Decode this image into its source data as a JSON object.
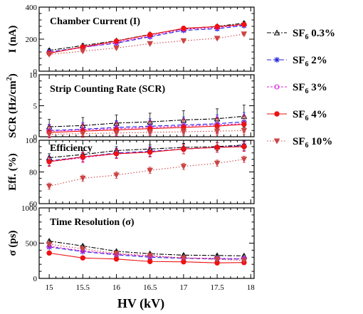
{
  "chart_data": {
    "type": "line",
    "xlabel": "HV (kV)",
    "x": [
      15,
      15.5,
      16,
      16.5,
      17,
      17.5,
      17.9
    ],
    "x_ticks": [
      "15",
      "15.5",
      "16",
      "16.5",
      "17",
      "17.5",
      "18"
    ],
    "xlim": [
      14.85,
      18.05
    ],
    "legend": {
      "placement": "right",
      "entries": [
        {
          "base": "SF",
          "sub": "6",
          "rest": " 0.3%"
        },
        {
          "base": "SF",
          "sub": "6",
          "rest": " 2%"
        },
        {
          "base": "SF",
          "sub": "6",
          "rest": " 3%"
        },
        {
          "base": "SF",
          "sub": "6",
          "rest": " 4%"
        },
        {
          "base": "SF",
          "sub": "6",
          "rest": " 10%"
        }
      ]
    },
    "series_style": [
      {
        "color": "#000000",
        "marker": "triangle",
        "dash": "6,2,2,2"
      },
      {
        "color": "#2222dd",
        "marker": "star",
        "dash": "6,3"
      },
      {
        "color": "#dd22dd",
        "marker": "circle-open",
        "dash": "3,2"
      },
      {
        "color": "#ee1111",
        "marker": "circle",
        "dash": ""
      },
      {
        "color": "#cc4444",
        "marker": "triangle-down",
        "dash": "1.5,2.5"
      }
    ],
    "panels": [
      {
        "title": "Chamber Current (I)",
        "ylabel": "I (nA)",
        "ylim": [
          0,
          400
        ],
        "yticks": [
          0,
          200,
          400
        ],
        "series": [
          {
            "values": [
              130,
              160,
              190,
              230,
              265,
              280,
              300
            ],
            "error": [
              10,
              10,
              10,
              10,
              10,
              10,
              10
            ]
          },
          {
            "values": [
              120,
              150,
              175,
              215,
              255,
              265,
              285
            ],
            "error": [
              10,
              10,
              10,
              10,
              10,
              10,
              10
            ]
          },
          {
            "values": [
              115,
              148,
              180,
              220,
              262,
              272,
              290
            ],
            "error": [
              10,
              10,
              10,
              10,
              10,
              10,
              10
            ]
          },
          {
            "values": [
              112,
              152,
              188,
              228,
              268,
              278,
              292
            ],
            "error": [
              10,
              10,
              10,
              10,
              10,
              10,
              10
            ]
          },
          {
            "values": [
              105,
              125,
              145,
              172,
              190,
              205,
              232
            ],
            "error": [
              8,
              8,
              8,
              8,
              8,
              8,
              8
            ]
          }
        ]
      },
      {
        "title": "Strip Counting Rate (SCR)",
        "ylabel_main": "SCR (Hz/cm",
        "ylabel_sup": "2",
        "ylabel_end": ")",
        "ylim": [
          0,
          10
        ],
        "yticks": [
          0,
          5,
          10
        ],
        "series": [
          {
            "values": [
              1.6,
              1.8,
              2.2,
              2.4,
              2.7,
              2.9,
              3.3
            ],
            "error": [
              1.2,
              1.3,
              1.3,
              1.4,
              1.5,
              1.6,
              1.8
            ]
          },
          {
            "values": [
              1.0,
              1.2,
              1.5,
              1.7,
              1.9,
              2.1,
              2.4
            ],
            "error": [
              1.0,
              1.1,
              1.1,
              1.2,
              1.3,
              1.4,
              1.5
            ]
          },
          {
            "values": [
              0.9,
              1.1,
              1.3,
              1.5,
              1.7,
              1.9,
              2.1
            ],
            "error": [
              1.0,
              1.0,
              1.1,
              1.1,
              1.2,
              1.3,
              1.4
            ]
          },
          {
            "values": [
              0.7,
              0.9,
              1.1,
              1.3,
              1.5,
              1.7,
              2.0
            ],
            "error": [
              0.9,
              1.0,
              1.0,
              1.1,
              1.2,
              1.2,
              1.3
            ]
          },
          {
            "values": [
              0.4,
              0.5,
              0.6,
              0.7,
              0.8,
              0.9,
              1.0
            ],
            "error": [
              0.4,
              0.4,
              0.5,
              0.5,
              0.5,
              0.6,
              0.6
            ]
          }
        ]
      },
      {
        "title": "Efficiency",
        "ylabel": "Eff. (%)",
        "ylim": [
          60,
          100
        ],
        "yticks": [
          60,
          80,
          100
        ],
        "series": [
          {
            "values": [
              89,
              91,
              93.5,
              94.5,
              95.5,
              96,
              97
            ],
            "error": [
              2.5,
              2.5,
              2.5,
              2.5,
              2.5,
              2.5,
              2.5
            ]
          },
          {
            "values": [
              87,
              89.5,
              92,
              93,
              94.5,
              95.5,
              96.5
            ],
            "error": [
              3,
              3,
              3,
              3,
              3,
              3,
              3
            ]
          },
          {
            "values": [
              86.5,
              89,
              91.5,
              92.5,
              94.5,
              95.5,
              96
            ],
            "error": [
              3,
              3,
              3,
              3,
              3,
              3,
              3
            ]
          },
          {
            "values": [
              86.5,
              89.5,
              91.5,
              92.5,
              94.5,
              95.5,
              96
            ],
            "error": [
              3,
              3,
              3,
              3,
              3,
              3,
              3
            ]
          },
          {
            "values": [
              71,
              76,
              78,
              81,
              83.5,
              85.5,
              88
            ],
            "error": [
              2,
              2,
              2,
              2,
              2,
              2,
              2
            ]
          }
        ]
      },
      {
        "title": "Time Resolution (σ)",
        "ylabel": "σ (ps)",
        "ylim": [
          0,
          1000
        ],
        "yticks": [
          0,
          500,
          1000
        ],
        "series": [
          {
            "values": [
              530,
              460,
              385,
              350,
              330,
              325,
              320
            ],
            "error": [
              15,
              15,
              15,
              15,
              15,
              15,
              15
            ]
          },
          {
            "values": [
              445,
              380,
              335,
              300,
              285,
              275,
              275
            ],
            "error": [
              15,
              15,
              15,
              15,
              15,
              15,
              15
            ]
          },
          {
            "values": [
              455,
              390,
              345,
              315,
              290,
              285,
              280
            ],
            "error": [
              15,
              15,
              15,
              15,
              15,
              15,
              15
            ]
          },
          {
            "values": [
              360,
              290,
              275,
              240,
              235,
              220,
              225
            ],
            "error": [
              15,
              15,
              15,
              15,
              15,
              15,
              15
            ]
          },
          {
            "values": [
              485,
              420,
              355,
              325,
              290,
              270,
              255
            ],
            "error": [
              15,
              15,
              15,
              15,
              15,
              15,
              15
            ]
          }
        ]
      }
    ]
  }
}
